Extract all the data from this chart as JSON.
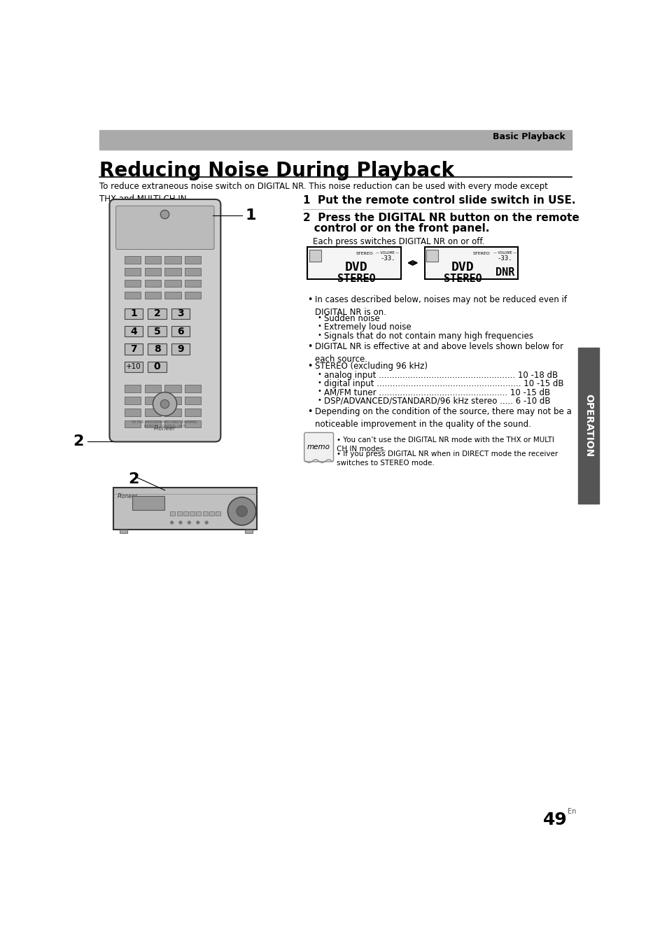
{
  "page_bg": "#ffffff",
  "header_bar_color": "#aaaaaa",
  "header_text": "Basic Playback",
  "main_title": "Reducing Noise During Playback",
  "intro_text": "To reduce extraneous noise switch on DIGITAL NR. This noise reduction can be used with every mode except\nTHX and MULTI CH IN.",
  "step1_bold": "1  Put the remote control slide switch in USE.",
  "step2_bold_1": "2  Press the DIGITAL NR button on the remote",
  "step2_bold_2": "   control or on the front panel.",
  "step2_sub": "Each press switches DIGITAL NR on or off.",
  "sub_bullets_1": [
    "Sudden noise",
    "Extremely loud noise",
    "Signals that do not contain many high frequencies"
  ],
  "sub_bullets_2": [
    "analog input .................................................... 10 -18 dB",
    "digital input ....................................................... 10 -15 dB",
    "AM/FM tuner ................................................. 10 -15 dB",
    "DSP/ADVANCED/STANDARD/96 kHz stereo ..... 6 -10 dB"
  ],
  "memo_text1": "You can’t use the DIGITAL NR mode with the THX or MULTI\nCH IN modes.",
  "memo_text2": "If you press DIGITAL NR when in DIRECT mode the receiver\nswitches to STEREO mode.",
  "sidebar_text": "OPERATION",
  "sidebar_color": "#555555",
  "page_number": "49",
  "page_sub": "En",
  "display_box_color": "#000000",
  "display_bg": "#f5f5f5"
}
